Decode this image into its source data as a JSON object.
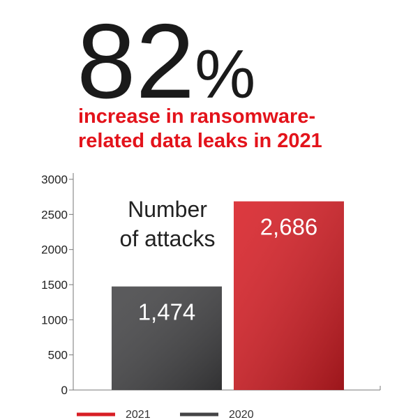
{
  "chart_data": {
    "type": "bar",
    "headline": "82%",
    "subtitle": [
      "increase in ransomware-",
      "related data leaks in 2021"
    ],
    "annotation": [
      "Number",
      "of attacks"
    ],
    "categories": [
      null,
      null
    ],
    "series": [
      {
        "name": "2021",
        "color": "#d81e25",
        "values": [
          null,
          2686
        ],
        "value_labels": [
          null,
          "2,686"
        ]
      },
      {
        "name": "2020",
        "color": "#444446",
        "values": [
          1474,
          null
        ],
        "value_labels": [
          "1,474",
          null
        ]
      }
    ],
    "ylim": [
      0,
      3000
    ],
    "yticks": [
      0,
      500,
      1000,
      1500,
      2000,
      2500,
      3000
    ]
  }
}
